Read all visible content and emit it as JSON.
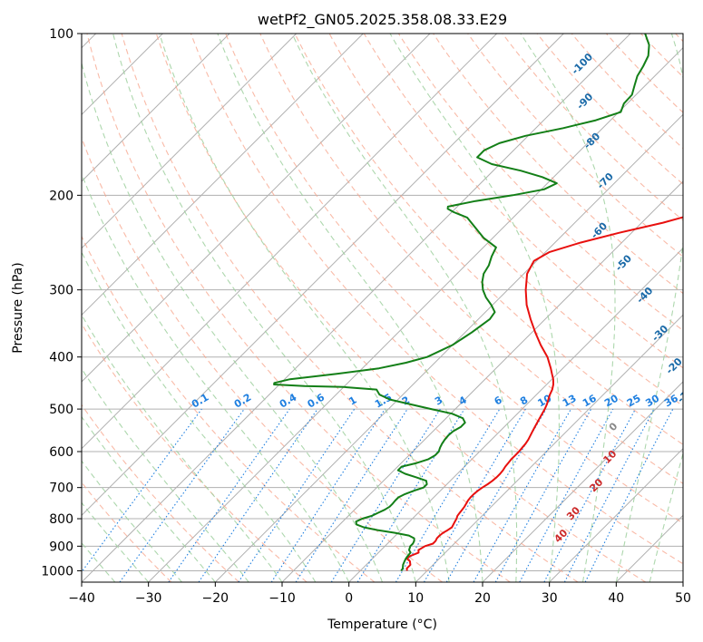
{
  "chart_data": {
    "type": "line",
    "subtype": "skew-t log-p",
    "title": "wetPf2_GN05.2025.358.08.33.E29",
    "xlabel": "Temperature (°C)",
    "ylabel": "Pressure (hPa)",
    "xlim": [
      -40,
      50
    ],
    "ylim": [
      1050,
      100
    ],
    "x_ticks": [
      -40,
      -30,
      -20,
      -10,
      0,
      10,
      20,
      30,
      40,
      50
    ],
    "x_tick_labels": [
      "−40",
      "−30",
      "−20",
      "−10",
      "0",
      "10",
      "20",
      "30",
      "40",
      "50"
    ],
    "y_ticks": [
      100,
      200,
      300,
      400,
      500,
      600,
      700,
      800,
      900,
      1000
    ],
    "y_tick_labels": [
      "100",
      "200",
      "300",
      "400",
      "500",
      "600",
      "700",
      "800",
      "900",
      "1000"
    ],
    "grid": true,
    "colors": {
      "temperature": "#e8100e",
      "dewpoint": "#137f17",
      "isotherm": "#b0b0b0",
      "dry_adiabat": "#f7a38a",
      "moist_adiabat": "#9fd09f",
      "mixing_ratio": "#1e7fe0",
      "dry_label": "#1a6aa8",
      "moist_label": "#cc2a2a",
      "zero_label": "#888888",
      "curved": "#d9c2a8"
    },
    "series": [
      {
        "name": "Temperature",
        "pressure": [
          1000,
          990,
          975,
          960,
          950,
          940,
          925,
          915,
          900,
          890,
          880,
          870,
          860,
          850,
          840,
          830,
          820,
          810,
          800,
          790,
          780,
          770,
          760,
          750,
          740,
          730,
          720,
          710,
          700,
          690,
          680,
          670,
          660,
          650,
          640,
          630,
          620,
          610,
          600,
          590,
          580,
          570,
          560,
          550,
          540,
          530,
          520,
          510,
          500,
          490,
          480,
          470,
          460,
          450,
          440,
          430,
          420,
          400,
          380,
          360,
          340,
          320,
          300,
          280,
          265,
          255,
          245,
          235,
          225,
          215,
          205,
          195,
          185,
          175,
          165,
          155,
          145,
          135,
          125,
          115,
          105,
          100
        ],
        "values": [
          7.0,
          6.6,
          6.6,
          6.0,
          5.2,
          5.2,
          6.0,
          5.6,
          6.0,
          6.8,
          6.8,
          6.6,
          6.6,
          6.7,
          7.0,
          7.2,
          7.0,
          6.8,
          6.6,
          6.3,
          6.2,
          6.1,
          6.0,
          5.8,
          5.6,
          5.5,
          5.5,
          5.6,
          5.8,
          6.1,
          6.3,
          6.4,
          6.4,
          6.3,
          6.1,
          6.0,
          5.9,
          5.9,
          5.9,
          5.8,
          5.7,
          5.5,
          5.2,
          4.9,
          4.6,
          4.3,
          4.0,
          3.7,
          3.4,
          3.0,
          2.5,
          2.0,
          1.6,
          1.0,
          0.2,
          -0.8,
          -1.8,
          -4.0,
          -6.8,
          -9.5,
          -12.2,
          -14.9,
          -17.3,
          -19.5,
          -20.4,
          -19.4,
          -16.2,
          -11.9,
          -6.8,
          -2.7,
          0.8,
          3.3,
          6.1,
          8.2,
          9.7,
          10.8,
          11.4,
          13.2,
          16.0,
          20.5,
          25.8,
          30.3
        ]
      },
      {
        "name": "Dewpoint",
        "pressure": [
          1000,
          990,
          975,
          960,
          950,
          940,
          925,
          915,
          900,
          890,
          880,
          870,
          860,
          850,
          840,
          830,
          820,
          810,
          800,
          790,
          780,
          770,
          760,
          750,
          740,
          730,
          720,
          710,
          700,
          690,
          680,
          670,
          660,
          650,
          640,
          630,
          620,
          610,
          600,
          590,
          580,
          570,
          560,
          550,
          540,
          530,
          520,
          510,
          500,
          490,
          480,
          470,
          460,
          455,
          453,
          450,
          447,
          440,
          430,
          420,
          410,
          400,
          380,
          360,
          340,
          330,
          320,
          310,
          300,
          290,
          280,
          270,
          260,
          250,
          240,
          230,
          220,
          215,
          212,
          210,
          205,
          200,
          195,
          190,
          185,
          180,
          175,
          170,
          165,
          160,
          155,
          150,
          145,
          140,
          135,
          130,
          125,
          120,
          115,
          110,
          105,
          100
        ],
        "values": [
          6.1,
          6.0,
          5.5,
          5.2,
          5.0,
          4.9,
          4.8,
          4.2,
          3.8,
          3.8,
          3.6,
          3.2,
          2.0,
          -0.5,
          -3.5,
          -6.0,
          -7.5,
          -8.0,
          -7.5,
          -6.5,
          -6.0,
          -5.5,
          -5.2,
          -5.2,
          -5.3,
          -5.3,
          -4.8,
          -4.0,
          -3.0,
          -3.0,
          -3.6,
          -5.6,
          -7.8,
          -9.4,
          -9.4,
          -7.7,
          -6.5,
          -6.1,
          -6.1,
          -6.5,
          -6.8,
          -7.0,
          -7.1,
          -7.0,
          -6.5,
          -6.5,
          -7.5,
          -9.8,
          -13.6,
          -17.4,
          -21.2,
          -23.5,
          -24.7,
          -30.0,
          -36.0,
          -40.8,
          -41.0,
          -39.2,
          -33.0,
          -27.5,
          -24.3,
          -22.0,
          -20.0,
          -19.0,
          -18.3,
          -18.6,
          -20.2,
          -22.1,
          -23.7,
          -25.0,
          -26.0,
          -26.5,
          -27.4,
          -28.1,
          -31.4,
          -34.1,
          -36.9,
          -39.7,
          -41.1,
          -41.4,
          -38.1,
          -33.4,
          -29.6,
          -28.6,
          -31.7,
          -35.9,
          -41.2,
          -44.4,
          -44.4,
          -43.2,
          -40.4,
          -35.9,
          -32.2,
          -29.7,
          -30.5,
          -30.6,
          -31.6,
          -32.6,
          -33.2,
          -34.0,
          -35.5,
          -37.8
        ]
      }
    ],
    "mixing_ratio_labels": [
      "0.1",
      "0.2",
      "0.4",
      "0.6",
      "1",
      "1.5",
      "2",
      "3",
      "4",
      "6",
      "8",
      "10",
      "13",
      "16",
      "20",
      "25",
      "30",
      "36"
    ],
    "mixing_ratio_values": [
      0.1,
      0.2,
      0.4,
      0.6,
      1,
      1.5,
      2,
      3,
      4,
      6,
      8,
      10,
      13,
      16,
      20,
      25,
      30,
      36
    ],
    "dry_adiabat_labels": [
      {
        "text": "-100",
        "pressure": 115,
        "temperature": -42
      },
      {
        "text": "-90",
        "pressure": 135,
        "temperature": -36
      },
      {
        "text": "-80",
        "pressure": 160,
        "temperature": -29
      },
      {
        "text": "-70",
        "pressure": 190,
        "temperature": -21
      },
      {
        "text": "-60",
        "pressure": 235,
        "temperature": -14.5
      },
      {
        "text": "-50",
        "pressure": 270,
        "temperature": -6
      },
      {
        "text": "-40",
        "pressure": 310,
        "temperature": 2
      },
      {
        "text": "-30",
        "pressure": 365,
        "temperature": 10
      },
      {
        "text": "-20",
        "pressure": 420,
        "temperature": 17
      },
      {
        "text": "-10",
        "pressure": 475,
        "temperature": 23
      }
    ],
    "moist_adiabat_labels": [
      {
        "text": "0",
        "pressure": 545,
        "temperature": 17
      },
      {
        "text": "10",
        "pressure": 620,
        "temperature": 21
      },
      {
        "text": "20",
        "pressure": 700,
        "temperature": 23.2
      },
      {
        "text": "30",
        "pressure": 790,
        "temperature": 24
      },
      {
        "text": "40",
        "pressure": 870,
        "temperature": 25.5
      }
    ]
  }
}
